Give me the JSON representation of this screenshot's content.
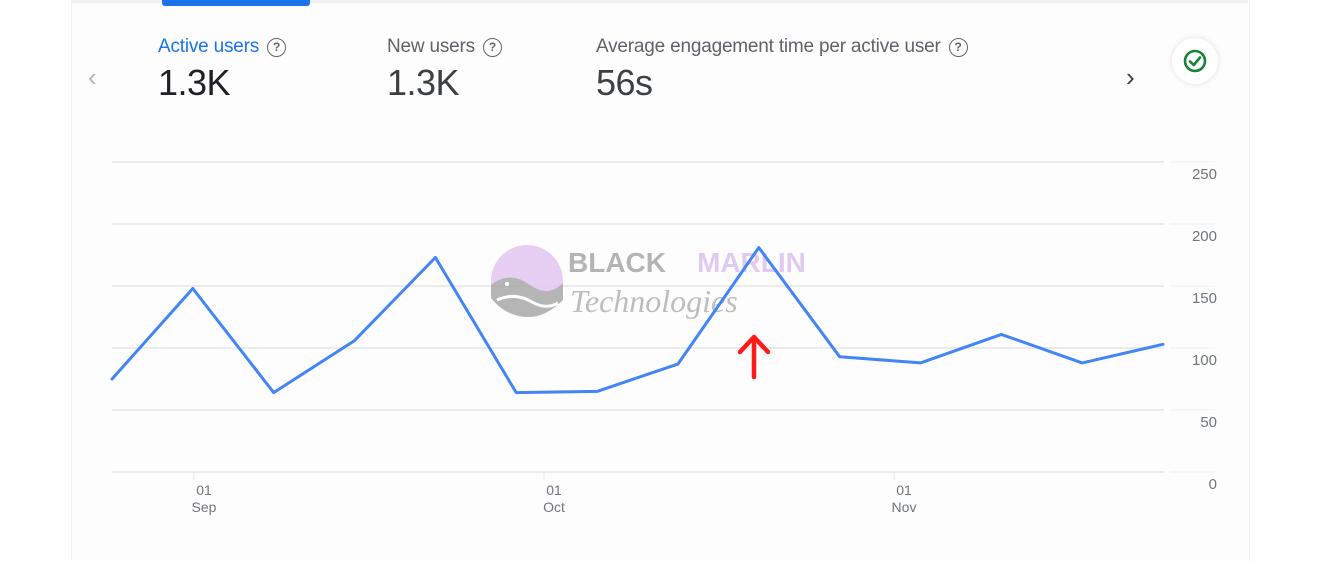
{
  "metrics": [
    {
      "label": "Active users",
      "value": "1.3K",
      "active": true,
      "help_icon": "question-circle-icon"
    },
    {
      "label": "New users",
      "value": "1.3K",
      "active": false,
      "help_icon": "question-circle-icon"
    },
    {
      "label": "Average engagement time per active user",
      "value": "56s",
      "active": false,
      "help_icon": "question-circle-icon"
    }
  ],
  "navigation": {
    "prev_icon": "chevron-left-icon",
    "next_icon": "chevron-right-icon",
    "prev_glyph": "‹",
    "next_glyph": "›"
  },
  "status_badge": {
    "icon": "check-circle-icon",
    "color": "#188038"
  },
  "colors": {
    "accent": "#1a73e8",
    "line": "#4285f4",
    "grid": "#ebebeb",
    "annotation_arrow": "#ff1a1a"
  },
  "watermark": {
    "line1_a": "BLACK",
    "line1_b": "MARLIN",
    "line2": "Technologies"
  },
  "chart_data": {
    "type": "line",
    "title": "Active users",
    "xlabel": "",
    "ylabel": "",
    "ylim": [
      0,
      250
    ],
    "yticks": [
      0,
      50,
      100,
      150,
      200,
      250
    ],
    "yaxis_position": "right",
    "grid": true,
    "x_tick_labels": [
      {
        "day": "01",
        "month": "Sep"
      },
      {
        "day": "01",
        "month": "Oct"
      },
      {
        "day": "01",
        "month": "Nov"
      }
    ],
    "x": [
      0,
      1,
      2,
      3,
      4,
      5,
      6,
      7,
      8,
      9,
      10,
      11,
      12,
      13
    ],
    "series": [
      {
        "name": "Active users",
        "values": [
          75,
          148,
          64,
          106,
          173,
          64,
          65,
          87,
          181,
          93,
          88,
          111,
          88,
          103
        ]
      }
    ],
    "annotations": [
      {
        "type": "arrow",
        "color": "#ff1a1a",
        "points_to_index": 8
      }
    ]
  }
}
